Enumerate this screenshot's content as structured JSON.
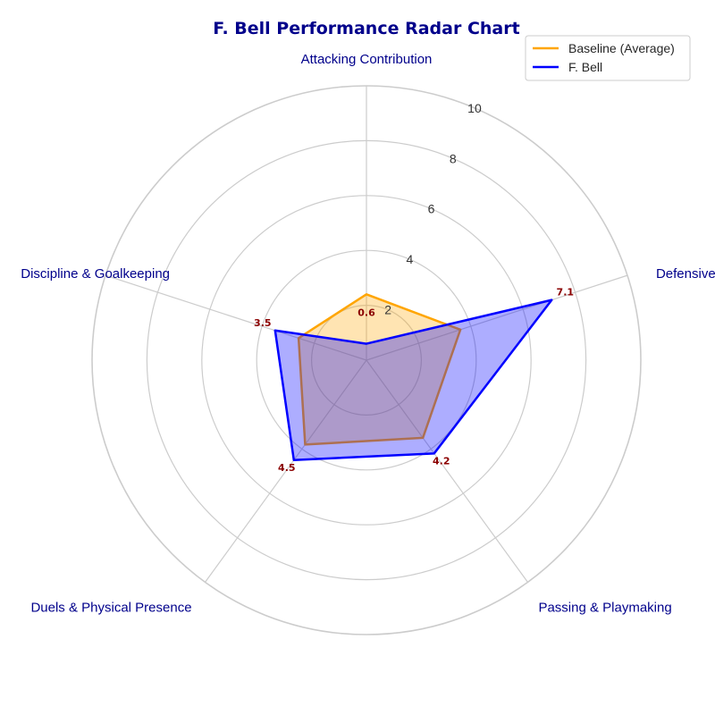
{
  "chart_data": {
    "type": "radar",
    "title": "F. Bell Performance Radar Chart",
    "categories": [
      "Attacking Contribution",
      "Defensive Capability",
      "Passing & Playmaking",
      "Duels & Physical Presence",
      "Discipline & Goalkeeping"
    ],
    "rlim": [
      0,
      10
    ],
    "radial_ticks": [
      2,
      4,
      6,
      8,
      10
    ],
    "grid": true,
    "legend_position": "top-right",
    "series": [
      {
        "name": "Baseline (Average)",
        "values": [
          2.4,
          3.6,
          3.5,
          3.8,
          2.6
        ],
        "color": "#ffa500"
      },
      {
        "name": "F. Bell",
        "values": [
          0.6,
          7.1,
          4.2,
          4.5,
          3.5
        ],
        "color": "#0000ff",
        "value_labels": [
          "0.6",
          "7.1",
          "4.2",
          "4.5",
          "3.5"
        ]
      }
    ],
    "label_color": "#8b0000",
    "axis_label_color": "#00008b"
  }
}
